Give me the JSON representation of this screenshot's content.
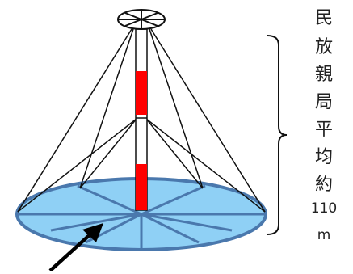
{
  "label_chars": [
    "民",
    "放",
    "親",
    "局",
    "平",
    "均",
    "約",
    "110",
    "m"
  ],
  "colors": {
    "mat_fill": "#8fd0f5",
    "mat_stroke": "#4a78ad",
    "mast_red": "#ff0000",
    "line": "#111111"
  },
  "icons": {
    "top": "wheel-icon",
    "pointer": "arrow-icon"
  }
}
